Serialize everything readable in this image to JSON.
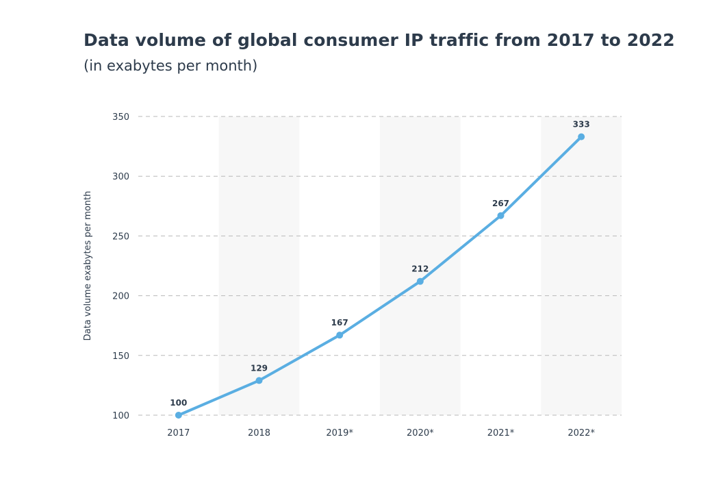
{
  "chart_data": {
    "type": "line",
    "title": "Data volume of global consumer IP traffic from 2017 to 2022",
    "subtitle": "(in exabytes per month)",
    "xlabel": "",
    "ylabel": "Data volume exabytes per month",
    "categories": [
      "2017",
      "2018",
      "2019*",
      "2020*",
      "2021*",
      "2022*"
    ],
    "values": [
      100,
      129,
      167,
      212,
      267,
      333
    ],
    "ylim": [
      100,
      350
    ],
    "yticks": [
      100,
      150,
      200,
      250,
      300,
      350
    ],
    "grid": true,
    "legend": "none",
    "colors": {
      "line": "#5aaee2",
      "text": "#2d3b4b",
      "band": "#f7f7f7",
      "grid": "#b8b8b8"
    }
  }
}
